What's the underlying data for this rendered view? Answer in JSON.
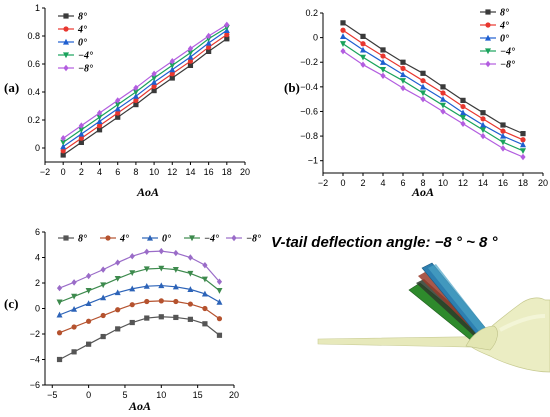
{
  "title": "V-tail deflection angle: −8 ° ~ 8 °",
  "colors": {
    "s8": "#3a3a3a",
    "s4": "#e8372f",
    "s0": "#1f5fd0",
    "sm4": "#1aa35c",
    "sm8": "#b35de0",
    "c_s8": "#555555",
    "c_s4": "#b5522e",
    "c_s0": "#2c63b8",
    "c_sm4": "#3d8a4d",
    "c_sm8": "#9a6cc8",
    "fuselage": "#eaecc0"
  },
  "chart_data": [
    {
      "panel_label": "(a)",
      "type": "line",
      "xlabel": "AoA",
      "ylabel": "",
      "xlim": [
        -2,
        20
      ],
      "ylim": [
        -0.1,
        1.0
      ],
      "xticks": [
        -2,
        0,
        2,
        4,
        6,
        8,
        10,
        12,
        14,
        16,
        18,
        20
      ],
      "yticks": [
        0,
        0.2,
        0.4,
        0.6,
        0.8,
        1
      ],
      "x": [
        0,
        2,
        4,
        6,
        8,
        10,
        12,
        14,
        16,
        18
      ],
      "legend_position": "top-left",
      "series": [
        {
          "name": "8°",
          "color_key": "s8",
          "marker": "square",
          "values": [
            -0.05,
            0.04,
            0.13,
            0.22,
            0.31,
            0.41,
            0.5,
            0.59,
            0.69,
            0.78
          ]
        },
        {
          "name": "4°",
          "color_key": "s4",
          "marker": "circle",
          "values": [
            -0.02,
            0.07,
            0.16,
            0.25,
            0.34,
            0.44,
            0.53,
            0.62,
            0.72,
            0.81
          ]
        },
        {
          "name": "0°",
          "color_key": "s0",
          "marker": "triangle-up",
          "values": [
            0.01,
            0.1,
            0.19,
            0.28,
            0.37,
            0.47,
            0.56,
            0.65,
            0.75,
            0.84
          ]
        },
        {
          "name": "−4°",
          "color_key": "sm4",
          "marker": "triangle-down",
          "values": [
            0.04,
            0.13,
            0.22,
            0.31,
            0.4,
            0.5,
            0.59,
            0.68,
            0.78,
            0.86
          ]
        },
        {
          "name": "−8°",
          "color_key": "sm8",
          "marker": "diamond",
          "values": [
            0.07,
            0.16,
            0.25,
            0.34,
            0.43,
            0.53,
            0.62,
            0.71,
            0.8,
            0.88
          ]
        }
      ]
    },
    {
      "panel_label": "(b)",
      "type": "line",
      "xlabel": "AoA",
      "ylabel": "",
      "xlim": [
        -2,
        20
      ],
      "ylim": [
        -1.1,
        0.2
      ],
      "xticks": [
        -2,
        0,
        2,
        4,
        6,
        8,
        10,
        12,
        14,
        16,
        18,
        20
      ],
      "yticks": [
        0.2,
        0,
        -0.2,
        -0.4,
        -0.6,
        -0.8,
        -1
      ],
      "x": [
        0,
        2,
        4,
        6,
        8,
        10,
        12,
        14,
        16,
        18
      ],
      "legend_position": "top-right",
      "series": [
        {
          "name": "8°",
          "color_key": "s8",
          "marker": "square",
          "values": [
            0.12,
            0.01,
            -0.1,
            -0.2,
            -0.29,
            -0.4,
            -0.51,
            -0.61,
            -0.71,
            -0.78
          ]
        },
        {
          "name": "4°",
          "color_key": "s4",
          "marker": "circle",
          "values": [
            0.06,
            -0.05,
            -0.15,
            -0.25,
            -0.35,
            -0.45,
            -0.56,
            -0.66,
            -0.76,
            -0.83
          ]
        },
        {
          "name": "0°",
          "color_key": "s0",
          "marker": "triangle-up",
          "values": [
            0.01,
            -0.1,
            -0.2,
            -0.3,
            -0.4,
            -0.5,
            -0.61,
            -0.71,
            -0.8,
            -0.87
          ]
        },
        {
          "name": "−4°",
          "color_key": "sm4",
          "marker": "triangle-down",
          "values": [
            -0.05,
            -0.16,
            -0.26,
            -0.35,
            -0.45,
            -0.55,
            -0.65,
            -0.75,
            -0.85,
            -0.92
          ]
        },
        {
          "name": "−8°",
          "color_key": "sm8",
          "marker": "diamond",
          "values": [
            -0.11,
            -0.22,
            -0.31,
            -0.41,
            -0.5,
            -0.6,
            -0.7,
            -0.8,
            -0.9,
            -0.97
          ]
        }
      ]
    },
    {
      "panel_label": "(c)",
      "type": "line",
      "xlabel": "AoA",
      "ylabel": "",
      "xlim": [
        -6,
        20
      ],
      "ylim": [
        -6,
        6
      ],
      "xticks": [
        -5,
        0,
        5,
        10,
        15,
        20
      ],
      "yticks": [
        6,
        4,
        2,
        0,
        -2,
        -4,
        -6
      ],
      "x": [
        -4,
        -2,
        0,
        2,
        4,
        6,
        8,
        10,
        12,
        14,
        16,
        18
      ],
      "legend_position": "top",
      "series": [
        {
          "name": "8°",
          "color_key": "c_s8",
          "marker": "square",
          "values": [
            -4.0,
            -3.4,
            -2.8,
            -2.2,
            -1.6,
            -1.1,
            -0.75,
            -0.65,
            -0.7,
            -0.85,
            -1.2,
            -2.1
          ]
        },
        {
          "name": "4°",
          "color_key": "c_s4",
          "marker": "circle",
          "values": [
            -1.9,
            -1.45,
            -1.0,
            -0.55,
            -0.1,
            0.3,
            0.55,
            0.6,
            0.55,
            0.35,
            0.0,
            -0.8
          ]
        },
        {
          "name": "0°",
          "color_key": "c_s0",
          "marker": "triangle-up",
          "values": [
            -0.5,
            -0.05,
            0.4,
            0.85,
            1.25,
            1.55,
            1.75,
            1.8,
            1.7,
            1.5,
            1.15,
            0.5
          ]
        },
        {
          "name": "−4°",
          "color_key": "c_sm4",
          "marker": "triangle-down",
          "values": [
            0.5,
            0.95,
            1.4,
            1.85,
            2.35,
            2.8,
            3.1,
            3.15,
            3.05,
            2.75,
            2.3,
            1.4
          ]
        },
        {
          "name": "−8°",
          "color_key": "c_sm8",
          "marker": "diamond",
          "values": [
            1.6,
            2.05,
            2.55,
            3.05,
            3.6,
            4.1,
            4.45,
            4.5,
            4.35,
            4.0,
            3.4,
            2.1
          ]
        }
      ]
    }
  ]
}
